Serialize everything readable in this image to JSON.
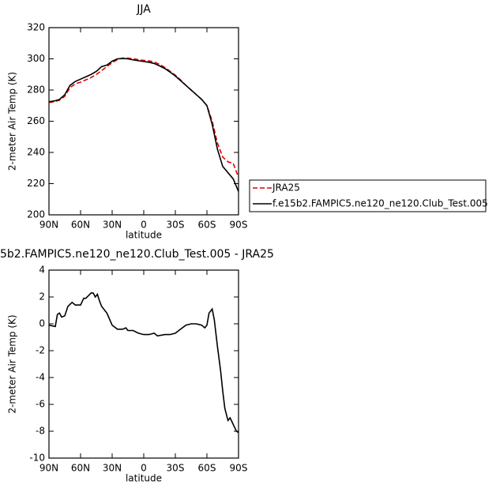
{
  "chart_data": [
    {
      "type": "line",
      "title": "JJA",
      "x_label": "latitude",
      "y_label": "2-meter Air Temp (K)",
      "xlim": [
        90,
        -90
      ],
      "xticks": [
        {
          "value": 90,
          "label": "90N"
        },
        {
          "value": 60,
          "label": "60N"
        },
        {
          "value": 30,
          "label": "30N"
        },
        0,
        {
          "value": -30,
          "label": "30S"
        },
        {
          "value": -60,
          "label": "60S"
        },
        {
          "value": -90,
          "label": "90S"
        }
      ],
      "ylim": [
        200,
        320
      ],
      "yticks": [
        200,
        220,
        240,
        260,
        280,
        300,
        320
      ],
      "legend": "right",
      "series": [
        {
          "name": "JRA25",
          "color": "#e00000",
          "dash": "dashed",
          "x": [
            90,
            85,
            80,
            75,
            70,
            65,
            60,
            55,
            50,
            45,
            40,
            35,
            30,
            25,
            20,
            15,
            10,
            5,
            0,
            -5,
            -10,
            -15,
            -20,
            -25,
            -30,
            -35,
            -40,
            -45,
            -50,
            -55,
            -60,
            -65,
            -70,
            -75,
            -80,
            -85,
            -90
          ],
          "values": [
            272,
            272.5,
            273.5,
            276,
            281.5,
            284,
            285,
            286.5,
            288,
            290,
            292.5,
            295,
            297.5,
            299.5,
            300.5,
            300.5,
            300,
            299.5,
            299,
            298.7,
            298,
            296.5,
            294.5,
            292,
            289.5,
            286.5,
            283,
            280,
            277,
            274,
            270,
            260,
            246,
            237,
            234,
            233,
            224
          ]
        },
        {
          "name": "f.e15b2.FAMPIC5.ne120_ne120.Club_Test.005",
          "color": "#000000",
          "dash": "solid",
          "x": [
            90,
            85,
            80,
            75,
            70,
            65,
            60,
            55,
            50,
            45,
            40,
            35,
            30,
            25,
            20,
            15,
            10,
            5,
            0,
            -5,
            -10,
            -15,
            -20,
            -25,
            -30,
            -35,
            -40,
            -45,
            -50,
            -55,
            -60,
            -65,
            -70,
            -75,
            -80,
            -85,
            -90
          ],
          "values": [
            272.5,
            273,
            274,
            277,
            283,
            285.5,
            287,
            288.5,
            290,
            292,
            295,
            296,
            298.5,
            300,
            300.2,
            300,
            299.3,
            298.8,
            298.3,
            297.8,
            297,
            295.5,
            293.8,
            291.5,
            289,
            286,
            283,
            280,
            277,
            274,
            270,
            258,
            242,
            231,
            227,
            223,
            215
          ]
        }
      ]
    },
    {
      "type": "line",
      "title": "5b2.FAMPIC5.ne120_ne120.Club_Test.005 - JRA25",
      "x_label": "latitude",
      "y_label": "2-meter Air Temp (K)",
      "xlim": [
        90,
        -90
      ],
      "xticks": [
        {
          "value": 90,
          "label": "90N"
        },
        {
          "value": 60,
          "label": "60N"
        },
        {
          "value": 30,
          "label": "30N"
        },
        0,
        {
          "value": -30,
          "label": "30S"
        },
        {
          "value": -60,
          "label": "60S"
        },
        {
          "value": -90,
          "label": "90S"
        }
      ],
      "ylim": [
        -10,
        4
      ],
      "yticks": [
        -10,
        -8,
        -6,
        -4,
        -2,
        0,
        2,
        4
      ],
      "series": [
        {
          "color": "#000000",
          "dash": "solid",
          "x": [
            90,
            84,
            82,
            80,
            78,
            75,
            72,
            68,
            65,
            60,
            57,
            55,
            50,
            48,
            46,
            44,
            42,
            40,
            35,
            30,
            25,
            20,
            17,
            15,
            10,
            5,
            0,
            -5,
            -10,
            -13,
            -20,
            -25,
            -30,
            -35,
            -40,
            -45,
            -50,
            -55,
            -58,
            -60,
            -62,
            -65,
            -67,
            -70,
            -73,
            -75,
            -77,
            -80,
            -82,
            -85,
            -88,
            -90
          ],
          "values": [
            -0.1,
            -0.2,
            0.7,
            0.8,
            0.5,
            0.6,
            1.3,
            1.6,
            1.4,
            1.4,
            1.9,
            1.9,
            2.3,
            2.3,
            2.0,
            2.2,
            1.7,
            1.3,
            0.8,
            -0.1,
            -0.4,
            -0.4,
            -0.3,
            -0.5,
            -0.5,
            -0.7,
            -0.8,
            -0.8,
            -0.7,
            -0.9,
            -0.8,
            -0.8,
            -0.7,
            -0.4,
            -0.1,
            0,
            0,
            -0.1,
            -0.3,
            -0.1,
            0.8,
            1.1,
            0.3,
            -1.7,
            -3.5,
            -5,
            -6.3,
            -7.2,
            -7.0,
            -7.5,
            -8.0,
            -8.1
          ]
        }
      ]
    }
  ]
}
